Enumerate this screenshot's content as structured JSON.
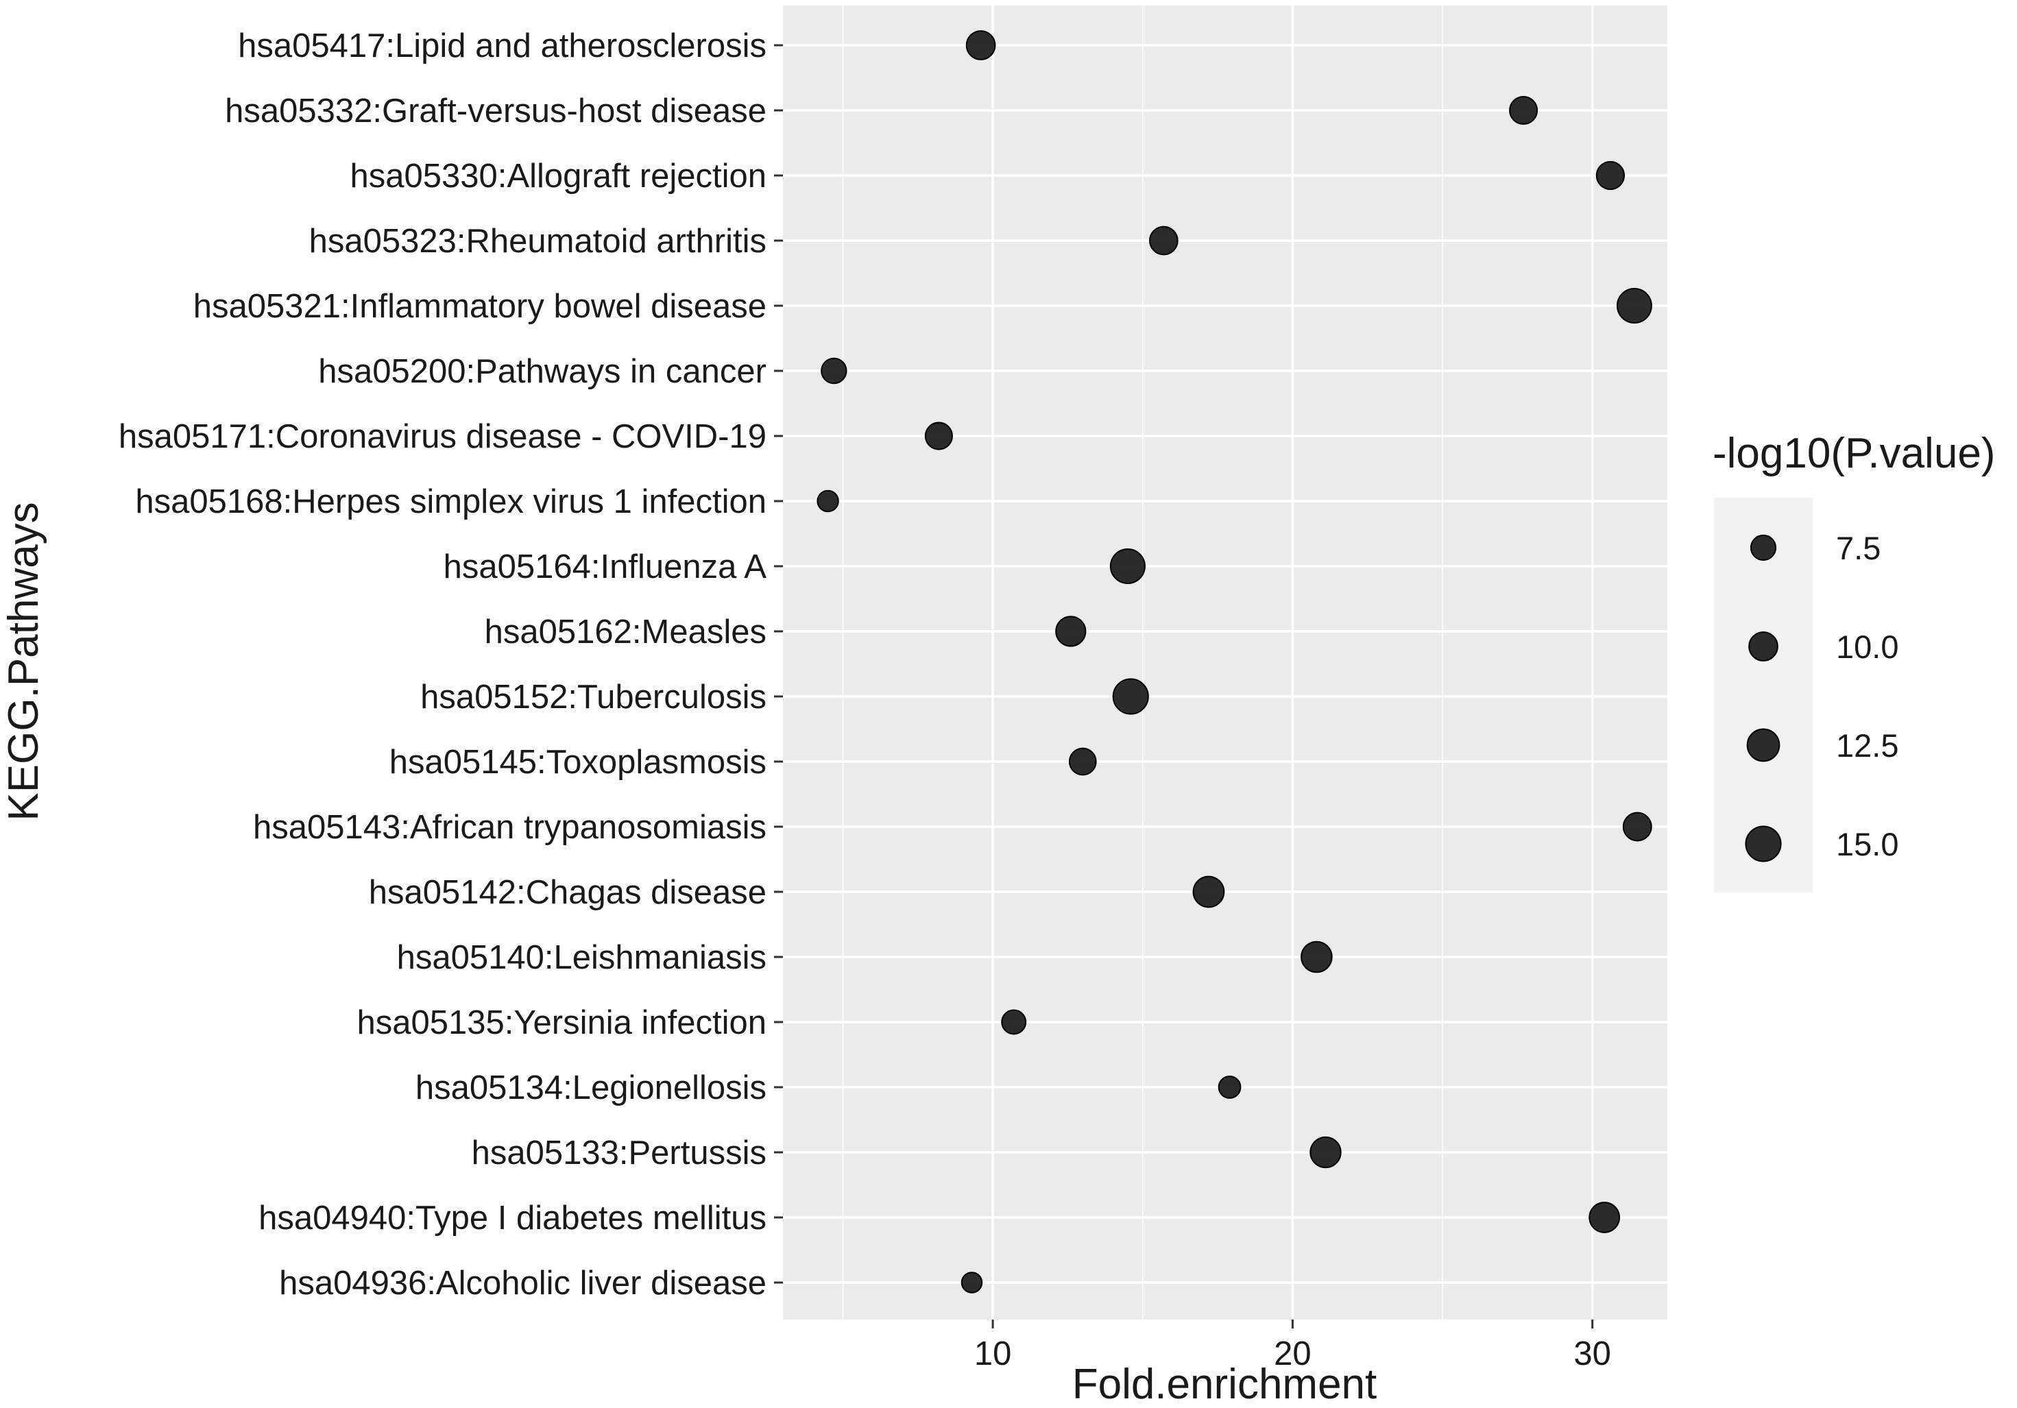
{
  "chart_data": {
    "type": "scatter",
    "title": "",
    "xlabel": "Fold.enrichment",
    "ylabel": "KEGG.Pathways",
    "xlim": [
      3,
      32.5
    ],
    "xticks": [
      10,
      20,
      30
    ],
    "xtick_labels": [
      "10",
      "20",
      "30"
    ],
    "grid": true,
    "size_variable": "-log10(P.value)",
    "legend": {
      "title": "-log10(P.value)",
      "position": "right",
      "entries": [
        {
          "label": "7.5",
          "value": 7.5
        },
        {
          "label": "10.0",
          "value": 10.0
        },
        {
          "label": "12.5",
          "value": 12.5
        },
        {
          "label": "15.0",
          "value": 15.0
        }
      ]
    },
    "categories": [
      "hsa05417:Lipid and atherosclerosis",
      "hsa05332:Graft-versus-host disease",
      "hsa05330:Allograft rejection",
      "hsa05323:Rheumatoid arthritis",
      "hsa05321:Inflammatory bowel disease",
      "hsa05200:Pathways in cancer",
      "hsa05171:Coronavirus disease - COVID-19",
      "hsa05168:Herpes simplex virus 1 infection",
      "hsa05164:Influenza A",
      "hsa05162:Measles",
      "hsa05152:Tuberculosis",
      "hsa05145:Toxoplasmosis",
      "hsa05143:African trypanosomiasis",
      "hsa05142:Chagas disease",
      "hsa05140:Leishmaniasis",
      "hsa05135:Yersinia infection",
      "hsa05134:Legionellosis",
      "hsa05133:Pertussis",
      "hsa04940:Type I diabetes mellitus",
      "hsa04936:Alcoholic liver disease"
    ],
    "points": [
      {
        "pathway": "hsa05417:Lipid and atherosclerosis",
        "fold_enrichment": 9.6,
        "neg_log10_p": 10.0
      },
      {
        "pathway": "hsa05332:Graft-versus-host disease",
        "fold_enrichment": 27.7,
        "neg_log10_p": 9.2
      },
      {
        "pathway": "hsa05330:Allograft rejection",
        "fold_enrichment": 30.6,
        "neg_log10_p": 9.3
      },
      {
        "pathway": "hsa05323:Rheumatoid arthritis",
        "fold_enrichment": 15.7,
        "neg_log10_p": 9.5
      },
      {
        "pathway": "hsa05321:Inflammatory bowel disease",
        "fold_enrichment": 31.4,
        "neg_log10_p": 14.3
      },
      {
        "pathway": "hsa05200:Pathways in cancer",
        "fold_enrichment": 4.7,
        "neg_log10_p": 7.6
      },
      {
        "pathway": "hsa05171:Coronavirus disease - COVID-19",
        "fold_enrichment": 8.2,
        "neg_log10_p": 8.8
      },
      {
        "pathway": "hsa05168:Herpes simplex virus 1 infection",
        "fold_enrichment": 4.5,
        "neg_log10_p": 5.3
      },
      {
        "pathway": "hsa05164:Influenza A",
        "fold_enrichment": 14.5,
        "neg_log10_p": 14.4
      },
      {
        "pathway": "hsa05162:Measles",
        "fold_enrichment": 12.6,
        "neg_log10_p": 10.7
      },
      {
        "pathway": "hsa05152:Tuberculosis",
        "fold_enrichment": 14.6,
        "neg_log10_p": 15.0
      },
      {
        "pathway": "hsa05145:Toxoplasmosis",
        "fold_enrichment": 13.0,
        "neg_log10_p": 8.6
      },
      {
        "pathway": "hsa05143:African trypanosomiasis",
        "fold_enrichment": 31.5,
        "neg_log10_p": 9.6
      },
      {
        "pathway": "hsa05142:Chagas disease",
        "fold_enrichment": 17.2,
        "neg_log10_p": 11.5
      },
      {
        "pathway": "hsa05140:Leishmaniasis",
        "fold_enrichment": 20.8,
        "neg_log10_p": 11.4
      },
      {
        "pathway": "hsa05135:Yersinia infection",
        "fold_enrichment": 10.7,
        "neg_log10_p": 7.0
      },
      {
        "pathway": "hsa05134:Legionellosis",
        "fold_enrichment": 17.9,
        "neg_log10_p": 5.8
      },
      {
        "pathway": "hsa05133:Pertussis",
        "fold_enrichment": 21.1,
        "neg_log10_p": 11.3
      },
      {
        "pathway": "hsa04940:Type I diabetes mellitus",
        "fold_enrichment": 30.4,
        "neg_log10_p": 11.0
      },
      {
        "pathway": "hsa04936:Alcoholic liver disease",
        "fold_enrichment": 9.3,
        "neg_log10_p": 5.0
      }
    ]
  },
  "colors": {
    "panel": "#ebebeb",
    "grid": "#ffffff",
    "point_fill": "#1a1a1a",
    "point_stroke": "#000000",
    "legend_key_bg": "#f2f2f2",
    "tick": "#333333"
  }
}
